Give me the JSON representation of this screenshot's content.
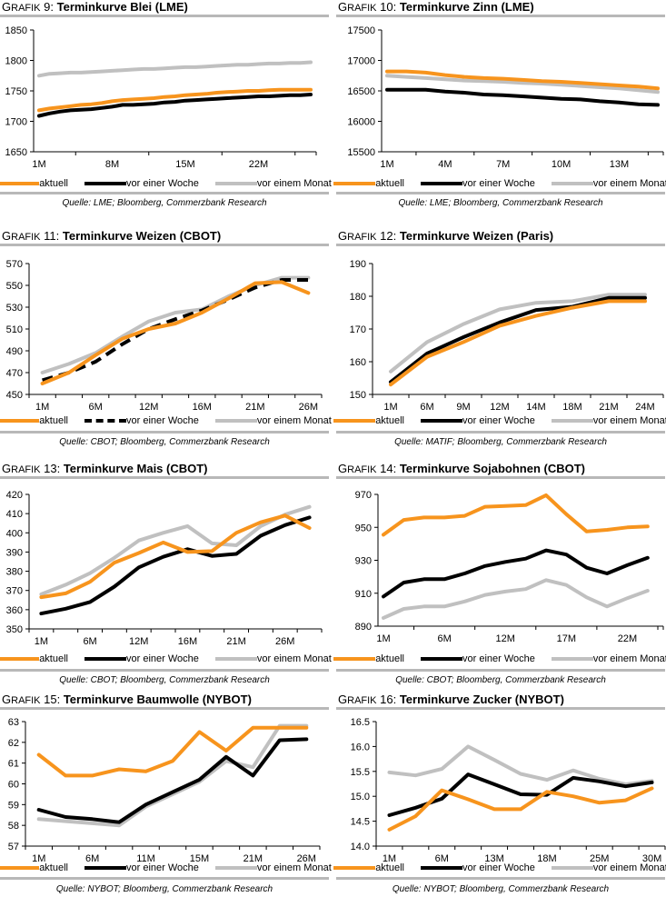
{
  "legend_labels": [
    "aktuell",
    "vor einer Woche",
    "vor einem Monat"
  ],
  "colors": {
    "aktuell": "#f7941d",
    "vor einer Woche": "#000000",
    "vor einem Monat": "#c0c0c0",
    "rule": "#b8b8b8"
  },
  "chart_data": [
    {
      "id": "grafik-9",
      "type": "line",
      "title_prefix": "Grafik 9:",
      "title": "Terminkurve Blei (LME)",
      "source": "Quelle: LME; Bloomberg, Commerzbank Research",
      "ylim": [
        1650,
        1850
      ],
      "yticks": [
        1650,
        1700,
        1750,
        1800,
        1850
      ],
      "xticklabels": [
        "1M",
        "8M",
        "15M",
        "22M"
      ],
      "xtick_positions": [
        1,
        8,
        15,
        22
      ],
      "x": [
        1,
        2,
        3,
        4,
        5,
        6,
        7,
        8,
        9,
        10,
        11,
        12,
        13,
        14,
        15,
        16,
        17,
        18,
        19,
        20,
        21,
        22,
        23,
        24,
        25,
        26,
        27
      ],
      "xlim": [
        1,
        27
      ],
      "series": [
        {
          "name": "aktuell",
          "style": "solid",
          "values": [
            1718,
            1721,
            1723,
            1725,
            1727,
            1728,
            1730,
            1733,
            1735,
            1736,
            1737,
            1738,
            1740,
            1741,
            1743,
            1744,
            1745,
            1747,
            1748,
            1749,
            1750,
            1750,
            1751,
            1752,
            1752,
            1752,
            1752
          ]
        },
        {
          "name": "vor einer Woche",
          "style": "solid",
          "values": [
            1709,
            1713,
            1716,
            1718,
            1719,
            1720,
            1722,
            1724,
            1727,
            1727,
            1728,
            1729,
            1731,
            1732,
            1734,
            1735,
            1736,
            1737,
            1738,
            1739,
            1740,
            1741,
            1741,
            1742,
            1743,
            1743,
            1744
          ]
        },
        {
          "name": "vor einem Monat",
          "style": "solid",
          "values": [
            1775,
            1778,
            1779,
            1780,
            1780,
            1781,
            1782,
            1783,
            1784,
            1785,
            1786,
            1786,
            1787,
            1788,
            1789,
            1789,
            1790,
            1791,
            1792,
            1793,
            1793,
            1794,
            1795,
            1795,
            1796,
            1796,
            1797
          ]
        }
      ]
    },
    {
      "id": "grafik-10",
      "type": "line",
      "title_prefix": "Grafik 10:",
      "title": "Terminkurve Zinn (LME)",
      "source": "Quelle: LME; Bloomberg, Commerzbank Research",
      "ylim": [
        15500,
        17500
      ],
      "yticks": [
        15500,
        16000,
        16500,
        17000,
        17500
      ],
      "xticklabels": [
        "1M",
        "4M",
        "7M",
        "10M",
        "13M"
      ],
      "xtick_positions": [
        1,
        4,
        7,
        10,
        13
      ],
      "x": [
        1,
        2,
        3,
        4,
        5,
        6,
        7,
        8,
        9,
        10,
        11,
        12,
        13,
        14,
        15
      ],
      "xlim": [
        1,
        15
      ],
      "series": [
        {
          "name": "aktuell",
          "style": "solid",
          "values": [
            16820,
            16820,
            16800,
            16760,
            16730,
            16710,
            16700,
            16680,
            16660,
            16650,
            16630,
            16610,
            16590,
            16570,
            16540
          ]
        },
        {
          "name": "vor einer Woche",
          "style": "solid",
          "values": [
            16520,
            16520,
            16520,
            16490,
            16470,
            16440,
            16430,
            16410,
            16390,
            16370,
            16360,
            16330,
            16310,
            16280,
            16270
          ]
        },
        {
          "name": "vor einem Monat",
          "style": "solid",
          "values": [
            16750,
            16730,
            16710,
            16690,
            16670,
            16660,
            16650,
            16630,
            16620,
            16600,
            16580,
            16560,
            16540,
            16510,
            16480
          ]
        }
      ]
    },
    {
      "id": "grafik-11",
      "type": "line",
      "title_prefix": "Grafik 11:",
      "title": "Terminkurve Weizen (CBOT)",
      "source": "Quelle: CBOT; Bloomberg, Commerzbank Research",
      "ylim": [
        450,
        570
      ],
      "yticks": [
        450,
        470,
        490,
        510,
        530,
        550,
        570
      ],
      "xticklabels": [
        "1M",
        "6M",
        "12M",
        "16M",
        "21M",
        "26M"
      ],
      "categories": 11,
      "series": [
        {
          "name": "aktuell",
          "style": "solid",
          "values": [
            460,
            470,
            486,
            501,
            510,
            515,
            525,
            538,
            552,
            553,
            543
          ]
        },
        {
          "name": "vor einer Woche",
          "style": "dashed",
          "values": [
            463,
            470,
            480,
            496,
            510,
            519,
            527,
            537,
            548,
            555,
            555
          ]
        },
        {
          "name": "vor einem Monat",
          "style": "solid",
          "values": [
            470,
            478,
            488,
            503,
            517,
            525,
            528,
            540,
            550,
            557,
            557
          ]
        }
      ]
    },
    {
      "id": "grafik-12",
      "type": "line",
      "title_prefix": "Grafik 12:",
      "title": "Terminkurve Weizen (Paris)",
      "source": "Quelle: MATIF; Bloomberg, Commerzbank Research",
      "ylim": [
        150,
        190
      ],
      "yticks": [
        150,
        160,
        170,
        180,
        190
      ],
      "xticklabels": [
        "1M",
        "6M",
        "9M",
        "12M",
        "14M",
        "18M",
        "21M",
        "24M"
      ],
      "categories": 8,
      "series": [
        {
          "name": "aktuell",
          "style": "solid",
          "values": [
            153,
            161.5,
            166,
            171,
            174,
            176.5,
            178.5,
            178.5
          ]
        },
        {
          "name": "vor einer Woche",
          "style": "solid",
          "values": [
            153.8,
            162.5,
            167.5,
            172,
            175.8,
            176.8,
            179.5,
            179.5
          ]
        },
        {
          "name": "vor einem Monat",
          "style": "solid",
          "values": [
            157,
            166,
            171.5,
            176,
            178,
            178.5,
            180.5,
            180.5
          ]
        }
      ]
    },
    {
      "id": "grafik-13",
      "type": "line",
      "title_prefix": "Grafik 13:",
      "title": "Terminkurve Mais (CBOT)",
      "source": "Quelle: CBOT; Bloomberg, Commerzbank Research",
      "ylim": [
        350,
        420
      ],
      "yticks": [
        350,
        360,
        370,
        380,
        390,
        400,
        410,
        420
      ],
      "xticklabels": [
        "1M",
        "6M",
        "12M",
        "16M",
        "21M",
        "26M"
      ],
      "xtick_every": 2,
      "categories": 12,
      "series": [
        {
          "name": "aktuell",
          "style": "solid",
          "values": [
            366.5,
            368.5,
            374.5,
            384.5,
            389.5,
            395,
            390,
            390.5,
            400,
            405.5,
            409,
            402.5
          ]
        },
        {
          "name": "vor einer Woche",
          "style": "solid",
          "values": [
            358,
            360.5,
            364,
            372,
            382,
            387.5,
            391.5,
            388,
            389,
            398.5,
            404,
            408
          ]
        },
        {
          "name": "vor einem Monat",
          "style": "solid",
          "values": [
            368,
            373,
            379,
            387,
            396,
            400,
            403.5,
            394.5,
            393.5,
            403.5,
            409.5,
            413.5
          ]
        }
      ]
    },
    {
      "id": "grafik-14",
      "type": "line",
      "title_prefix": "Grafik 14:",
      "title": "Terminkurve Sojabohnen (CBOT)",
      "source": "Quelle: CBOT; Bloomberg, Commerzbank Research",
      "ylim": [
        890,
        970
      ],
      "yticks": [
        890,
        910,
        930,
        950,
        970
      ],
      "xticklabels": [
        "1M",
        "6M",
        "12M",
        "17M",
        "22M"
      ],
      "x": [
        0,
        1,
        2,
        3,
        4,
        5,
        6,
        7,
        8,
        9,
        10,
        11,
        12,
        13
      ],
      "xtick_positions": [
        0,
        3,
        6,
        9,
        12
      ],
      "xlim": [
        0,
        13.5
      ],
      "series": [
        {
          "name": "aktuell",
          "style": "solid",
          "values": [
            945.5,
            954.5,
            956,
            956,
            957,
            962.5,
            963,
            963.5,
            969.5,
            958,
            947.5,
            948.5,
            950,
            950.5
          ]
        },
        {
          "name": "vor einer Woche",
          "style": "solid",
          "values": [
            908,
            916.5,
            918.5,
            918.5,
            922,
            926.5,
            929,
            931,
            936,
            933.5,
            925.5,
            922,
            927,
            931.5
          ]
        },
        {
          "name": "vor einem Monat",
          "style": "solid",
          "values": [
            895,
            900.5,
            902,
            902,
            905,
            909,
            911,
            912.5,
            918,
            915,
            907.5,
            902,
            907,
            911.5
          ]
        }
      ]
    },
    {
      "id": "grafik-15",
      "type": "line",
      "title_prefix": "Grafik 15:",
      "title": "Terminkurve Baumwolle (NYBOT)",
      "source": "Quelle: NYBOT; Bloomberg, Commerzbank Research",
      "ylim": [
        57,
        63
      ],
      "yticks": [
        57,
        58,
        59,
        60,
        61,
        62,
        63
      ],
      "xticklabels": [
        "1M",
        "6M",
        "11M",
        "15M",
        "21M",
        "26M"
      ],
      "xtick_every": 2,
      "categories": 11,
      "series": [
        {
          "name": "aktuell",
          "style": "solid",
          "values": [
            61.4,
            60.4,
            60.4,
            60.7,
            60.6,
            61.1,
            62.5,
            61.6,
            62.7,
            62.7,
            62.7
          ]
        },
        {
          "name": "vor einer Woche",
          "style": "solid",
          "values": [
            58.75,
            58.4,
            58.3,
            58.15,
            59.0,
            59.6,
            60.2,
            61.3,
            60.4,
            62.1,
            62.15
          ]
        },
        {
          "name": "vor einem Monat",
          "style": "solid",
          "values": [
            58.3,
            58.2,
            58.1,
            58.0,
            58.9,
            59.5,
            60.1,
            61.1,
            60.8,
            62.8,
            62.8
          ]
        }
      ]
    },
    {
      "id": "grafik-16",
      "type": "line",
      "title_prefix": "Grafik 16:",
      "title": "Terminkurve Zucker (NYBOT)",
      "source": "Quelle: NYBOT; Bloomberg, Commerzbank Research",
      "ylim": [
        14.0,
        16.5
      ],
      "yticks": [
        "14.0",
        "14.5",
        "15.0",
        "15.5",
        "16.0",
        "16.5"
      ],
      "xticklabels": [
        "1M",
        "6M",
        "13M",
        "18M",
        "25M",
        "30M"
      ],
      "xtick_every": 2,
      "categories": 11,
      "series": [
        {
          "name": "aktuell",
          "style": "solid",
          "values": [
            14.33,
            14.6,
            15.12,
            14.94,
            14.74,
            14.74,
            15.09,
            15.0,
            14.87,
            14.92,
            15.16
          ]
        },
        {
          "name": "vor einer Woche",
          "style": "solid",
          "values": [
            14.62,
            14.77,
            14.95,
            15.44,
            15.24,
            15.04,
            15.03,
            15.37,
            15.3,
            15.2,
            15.28
          ]
        },
        {
          "name": "vor einem Monat",
          "style": "solid",
          "values": [
            15.48,
            15.42,
            15.55,
            16.0,
            15.73,
            15.45,
            15.33,
            15.52,
            15.35,
            15.24,
            15.31
          ]
        }
      ]
    }
  ]
}
